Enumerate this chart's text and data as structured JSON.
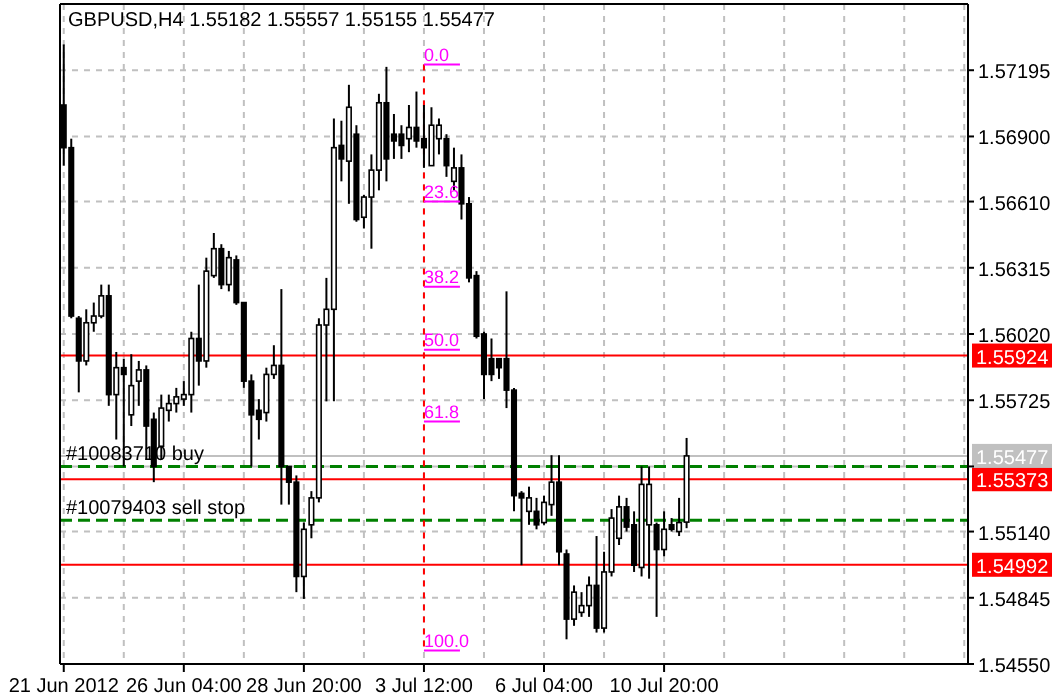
{
  "chart_data": {
    "type": "candlestick",
    "title": "GBPUSD,H4  1.55182 1.55557 1.55155 1.55477",
    "categories": [
      "21 Jun 2012",
      null,
      null,
      null,
      null,
      null,
      null,
      null,
      null,
      null,
      null,
      null,
      null,
      null,
      null,
      null,
      "26 Jun 04:00",
      null,
      null,
      null,
      null,
      null,
      null,
      null,
      null,
      null,
      null,
      null,
      null,
      null,
      null,
      null,
      "28 Jun 20:00",
      null,
      null,
      null,
      null,
      null,
      null,
      null,
      null,
      null,
      null,
      null,
      null,
      null,
      null,
      null,
      "3 Jul 12:00",
      null,
      null,
      null,
      null,
      null,
      null,
      null,
      null,
      null,
      null,
      null,
      null,
      null,
      null,
      null,
      "6 Jul 04:00",
      null,
      null,
      null,
      null,
      null,
      null,
      null,
      null,
      null,
      null,
      null,
      null,
      null,
      null,
      null,
      "10 Jul 20:00",
      null,
      null,
      null,
      null,
      null,
      null,
      null,
      null,
      null,
      null,
      null,
      null,
      null,
      null,
      null,
      null,
      null,
      null,
      null,
      null,
      null,
      null,
      null,
      null,
      null,
      null,
      null,
      null,
      null,
      null,
      null,
      null,
      null,
      null,
      null,
      null,
      null,
      null,
      null,
      null
    ],
    "ohlc": [
      [
        1.5704,
        1.5731,
        1.5677,
        1.5685
      ],
      [
        1.5685,
        1.5689,
        1.5609,
        1.561
      ],
      [
        1.5609,
        1.561,
        1.5576,
        1.559
      ],
      [
        1.559,
        1.5613,
        1.5588,
        1.5607
      ],
      [
        1.5607,
        1.5616,
        1.5603,
        1.561
      ],
      [
        1.561,
        1.5624,
        1.5609,
        1.5619
      ],
      [
        1.5619,
        1.5624,
        1.557,
        1.5575
      ],
      [
        1.5575,
        1.5594,
        1.5555,
        1.5587
      ],
      [
        1.5587,
        1.5591,
        1.5543,
        1.5584
      ],
      [
        1.5566,
        1.5593,
        1.5561,
        1.5579
      ],
      [
        1.5581,
        1.559,
        1.557,
        1.5586
      ],
      [
        1.5586,
        1.5588,
        1.5546,
        1.5561
      ],
      [
        1.5564,
        1.5567,
        1.5536,
        1.5543
      ],
      [
        1.5552,
        1.5575,
        1.5546,
        1.5569
      ],
      [
        1.5568,
        1.5575,
        1.5563,
        1.5571
      ],
      [
        1.5571,
        1.5578,
        1.5567,
        1.5574
      ],
      [
        1.5573,
        1.5581,
        1.557,
        1.5575
      ],
      [
        1.5575,
        1.5603,
        1.5567,
        1.56
      ],
      [
        1.56,
        1.5624,
        1.5579,
        1.559
      ],
      [
        1.559,
        1.5636,
        1.5587,
        1.563
      ],
      [
        1.5628,
        1.5647,
        1.5627,
        1.564
      ],
      [
        1.564,
        1.5642,
        1.5622,
        1.5624
      ],
      [
        1.5624,
        1.5639,
        1.5621,
        1.5636
      ],
      [
        1.5635,
        1.5637,
        1.5615,
        1.5616
      ],
      [
        1.5616,
        1.5616,
        1.5578,
        1.5581
      ],
      [
        1.5581,
        1.5584,
        1.5543,
        1.5566
      ],
      [
        1.5568,
        1.5573,
        1.5555,
        1.5564
      ],
      [
        1.5567,
        1.5587,
        1.5563,
        1.5584
      ],
      [
        1.5584,
        1.5597,
        1.5582,
        1.5588
      ],
      [
        1.5588,
        1.5622,
        1.5526,
        1.5543
      ],
      [
        1.5543,
        1.5543,
        1.5526,
        1.5536
      ],
      [
        1.5536,
        1.5539,
        1.5487,
        1.5494
      ],
      [
        1.5494,
        1.5518,
        1.5484,
        1.5515
      ],
      [
        1.5517,
        1.5532,
        1.5511,
        1.5529
      ],
      [
        1.5529,
        1.5609,
        1.5527,
        1.5606
      ],
      [
        1.5606,
        1.5627,
        1.5572,
        1.5613
      ],
      [
        1.5613,
        1.5698,
        1.5572,
        1.5685
      ],
      [
        1.5686,
        1.5697,
        1.567,
        1.568
      ],
      [
        1.5679,
        1.5713,
        1.566,
        1.5703
      ],
      [
        1.5691,
        1.5695,
        1.5652,
        1.5653
      ],
      [
        1.5654,
        1.5664,
        1.5649,
        1.5663
      ],
      [
        1.5663,
        1.5682,
        1.564,
        1.5675
      ],
      [
        1.5675,
        1.5709,
        1.5666,
        1.5705
      ],
      [
        1.5705,
        1.5721,
        1.567,
        1.568
      ],
      [
        1.5691,
        1.57,
        1.568,
        1.5688
      ],
      [
        1.5691,
        1.5695,
        1.568,
        1.5686
      ],
      [
        1.5689,
        1.5704,
        1.5683,
        1.5694
      ],
      [
        1.5694,
        1.571,
        1.5685,
        1.5688
      ],
      [
        1.5689,
        1.5704,
        1.5676,
        1.5685
      ],
      [
        1.5677,
        1.5703,
        1.5677,
        1.5695
      ],
      [
        1.5689,
        1.5698,
        1.5682,
        1.5695
      ],
      [
        1.5689,
        1.5691,
        1.5672,
        1.5677
      ],
      [
        1.567,
        1.5685,
        1.5666,
        1.5676
      ],
      [
        1.5676,
        1.5682,
        1.5653,
        1.566
      ],
      [
        1.566,
        1.5663,
        1.5625,
        1.5627
      ],
      [
        1.5628,
        1.563,
        1.56,
        1.5601
      ],
      [
        1.5602,
        1.5603,
        1.5573,
        1.5584
      ],
      [
        1.5591,
        1.56,
        1.5581,
        1.5584
      ],
      [
        1.5591,
        1.5591,
        1.5582,
        1.5587
      ],
      [
        1.5591,
        1.5621,
        1.5569,
        1.5577
      ],
      [
        1.5577,
        1.5578,
        1.5523,
        1.553
      ],
      [
        1.5531,
        1.5532,
        1.5499,
        1.5529
      ],
      [
        1.5523,
        1.5534,
        1.5517,
        1.5529
      ],
      [
        1.5523,
        1.5529,
        1.5515,
        1.5517
      ],
      [
        1.5518,
        1.553,
        1.5517,
        1.5527
      ],
      [
        1.5526,
        1.5548,
        1.5521,
        1.5536
      ],
      [
        1.5536,
        1.5548,
        1.5499,
        1.5505
      ],
      [
        1.5504,
        1.5506,
        1.5466,
        1.5475
      ],
      [
        1.5475,
        1.549,
        1.5472,
        1.5487
      ],
      [
        1.5478,
        1.5487,
        1.5476,
        1.5481
      ],
      [
        1.5481,
        1.5494,
        1.5476,
        1.549
      ],
      [
        1.549,
        1.5512,
        1.5469,
        1.5471
      ],
      [
        1.5471,
        1.5505,
        1.5469,
        1.5496
      ],
      [
        1.5496,
        1.5524,
        1.5494,
        1.552
      ],
      [
        1.5511,
        1.553,
        1.5508,
        1.5525
      ],
      [
        1.5525,
        1.5529,
        1.5514,
        1.5516
      ],
      [
        1.5517,
        1.5523,
        1.5496,
        1.5499
      ],
      [
        1.5498,
        1.5543,
        1.5494,
        1.5535
      ],
      [
        1.5517,
        1.5543,
        1.5493,
        1.5535
      ],
      [
        1.5517,
        1.5518,
        1.5476,
        1.5506
      ],
      [
        1.5506,
        1.5523,
        1.5503,
        1.5515
      ],
      [
        1.5517,
        1.552,
        1.5514,
        1.5515
      ],
      [
        1.5514,
        1.5529,
        1.5512,
        1.5518
      ],
      [
        1.55182,
        1.55557,
        1.55155,
        1.55477
      ],
      null,
      null,
      null,
      null,
      null,
      null,
      null,
      null,
      null,
      null,
      null,
      null,
      null,
      null,
      null,
      null,
      null,
      null,
      null,
      null,
      null,
      null,
      null,
      null,
      null,
      null,
      null,
      null,
      null,
      null,
      null,
      null,
      null,
      null,
      null,
      null,
      null
    ],
    "ylim": [
      1.5455,
      1.5749
    ],
    "yticks": [
      1.57195,
      {
        "value": 1.569,
        "label": "1.56900"
      },
      {
        "value": 1.5661,
        "label": "1.56610"
      },
      1.56315,
      {
        "value": 1.5602,
        "label": "1.56020"
      },
      1.55725,
      {
        "value": 1.5543,
        "label": null
      },
      {
        "value": 1.5514,
        "label": "1.55140"
      },
      1.54845,
      {
        "value": 1.5455,
        "label": "1.54550"
      }
    ],
    "grid": true,
    "ref_lines": [
      {
        "axis": "y",
        "value": 1.55924,
        "label": "1.55924",
        "color": "#ff0000",
        "line_style": "solid"
      },
      {
        "axis": "y",
        "value": 1.55373,
        "label": "1.55373",
        "color": "#ff0000",
        "line_style": "solid"
      },
      {
        "axis": "y",
        "value": 1.54992,
        "label": "1.54992",
        "color": "#ff0000",
        "line_style": "solid"
      },
      {
        "axis": "y",
        "value": 1.55477,
        "label": "1.55477",
        "color": "#c0c0c0",
        "line_style": "solid"
      },
      {
        "axis": "y",
        "value": 1.5543,
        "label": "#10083710 buy",
        "color": "#008000",
        "line_style": "dashed"
      },
      {
        "axis": "y",
        "value": 1.5519,
        "label": "#10079403 sell stop",
        "color": "#008000",
        "line_style": "dashed"
      },
      {
        "axis": "x",
        "value": "3 Jul 12:00",
        "color": "#ff0000",
        "line_style": "dotted"
      }
    ],
    "annotations": [
      {
        "text": "0.0",
        "x": "3 Jul 12:00",
        "y": 1.5722
      },
      {
        "text": "23.6",
        "x": "3 Jul 12:00",
        "y": 1.5661
      },
      {
        "text": "38.2",
        "x": "3 Jul 12:00",
        "y": 1.5623
      },
      {
        "text": "50.0",
        "x": "3 Jul 12:00",
        "y": 1.5595
      },
      {
        "text": "61.8",
        "x": "3 Jul 12:00",
        "y": 1.5563
      },
      {
        "text": "100.0",
        "x": "3 Jul 12:00",
        "y": 1.5461
      }
    ]
  }
}
